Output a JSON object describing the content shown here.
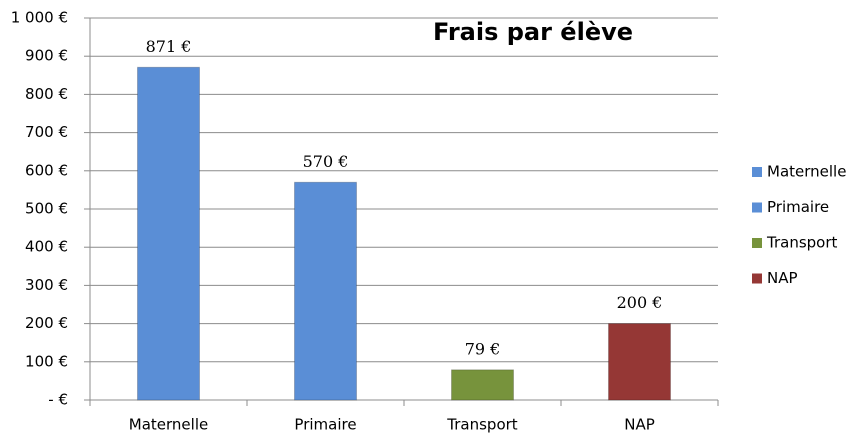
{
  "chart_data": {
    "type": "bar",
    "title": "Frais par élève",
    "categories": [
      "Maternelle",
      "Primaire",
      "Transport",
      "NAP"
    ],
    "values": [
      871,
      570,
      79,
      200
    ],
    "value_labels": [
      "871 €",
      "570 €",
      "79 €",
      "200 €"
    ],
    "colors": [
      "#5a8ed6",
      "#5a8ed6",
      "#77933c",
      "#953735"
    ],
    "ylim": [
      0,
      1000
    ],
    "yticks": [
      {
        "value": 0,
        "label": "-  €"
      },
      {
        "value": 100,
        "label": "100 €"
      },
      {
        "value": 200,
        "label": "200 €"
      },
      {
        "value": 300,
        "label": "300 €"
      },
      {
        "value": 400,
        "label": "400 €"
      },
      {
        "value": 500,
        "label": "500 €"
      },
      {
        "value": 600,
        "label": "600 €"
      },
      {
        "value": 700,
        "label": "700 €"
      },
      {
        "value": 800,
        "label": "800 €"
      },
      {
        "value": 900,
        "label": "900 €"
      },
      {
        "value": 1000,
        "label": "1 000 €"
      }
    ],
    "grid": true,
    "legend": "right"
  }
}
